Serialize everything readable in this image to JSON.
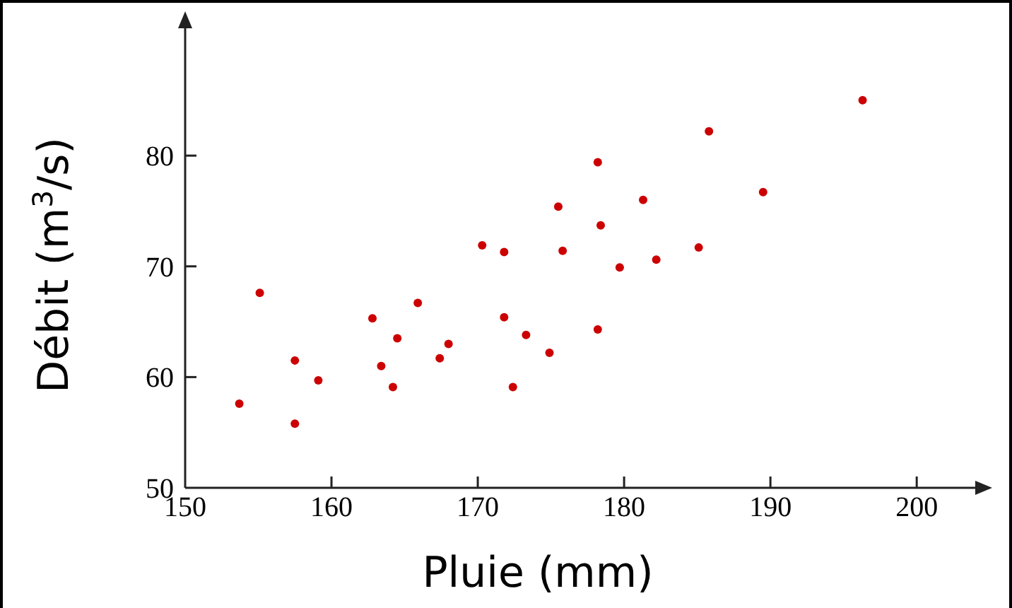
{
  "chart_data": {
    "type": "scatter",
    "xlabel": "Pluie (mm)",
    "ylabel": "Débit (m$^{3}$/s)",
    "xlim": [
      150,
      204
    ],
    "ylim": [
      50,
      91.5
    ],
    "xticks": [
      150,
      160,
      170,
      180,
      190,
      200
    ],
    "yticks": [
      50,
      60,
      70,
      80
    ],
    "grid": false,
    "marker": "circle",
    "series": [
      {
        "color": "#cc0000",
        "x": [
          153.7,
          155.1,
          157.5,
          157.5,
          159.1,
          162.8,
          163.4,
          164.5,
          164.2,
          165.9,
          167.4,
          168.0,
          170.3,
          171.8,
          171.8,
          172.4,
          173.3,
          174.9,
          175.5,
          175.8,
          178.2,
          178.2,
          178.4,
          179.7,
          181.3,
          182.2,
          185.1,
          185.8,
          189.5,
          196.3
        ],
        "values": [
          57.6,
          67.6,
          61.5,
          55.8,
          59.7,
          65.3,
          61.0,
          63.5,
          59.1,
          66.7,
          61.7,
          63.0,
          71.9,
          71.3,
          65.4,
          59.1,
          63.8,
          62.2,
          75.4,
          71.4,
          79.4,
          64.3,
          73.7,
          69.9,
          76.0,
          70.6,
          71.7,
          82.2,
          76.7,
          85.0
        ]
      }
    ]
  }
}
